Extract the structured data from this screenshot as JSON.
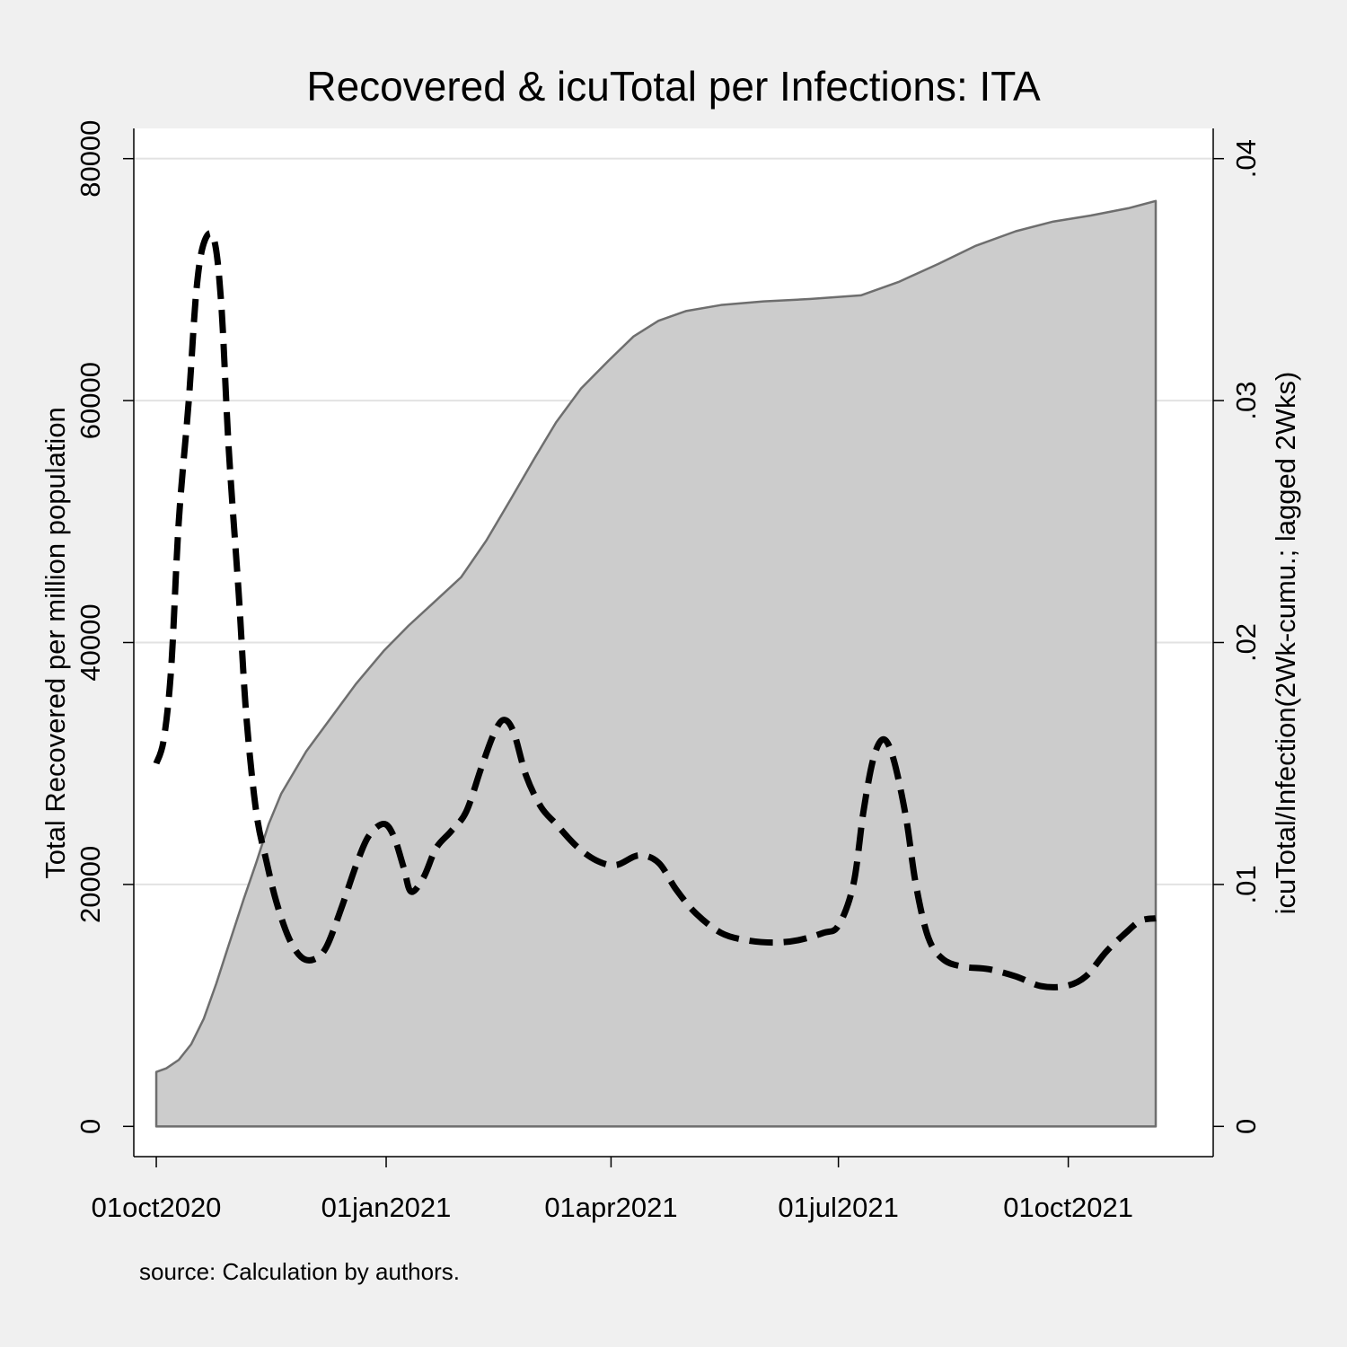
{
  "chart_data": {
    "type": "area",
    "title": "Recovered & icuTotal per Infections: ITA",
    "ylabel_left": "Total Recovered per million population",
    "ylabel_right": "icuTotal/Infection(2Wk-cumu.; lagged 2Wks)",
    "xlabel": "",
    "source_note": "source: Calculation by authors.",
    "x_ticks": [
      {
        "date": "2020-10-01",
        "label": "01oct2020"
      },
      {
        "date": "2021-01-01",
        "label": "01jan2021"
      },
      {
        "date": "2021-04-01",
        "label": "01apr2021"
      },
      {
        "date": "2021-07-01",
        "label": "01jul2021"
      },
      {
        "date": "2021-10-01",
        "label": "01oct2021"
      }
    ],
    "x_range": [
      "2020-09-22",
      "2021-11-28"
    ],
    "y_left": {
      "range": [
        -2500,
        82500
      ],
      "ticks": [
        {
          "value": 0,
          "label": "0"
        },
        {
          "value": 20000,
          "label": "20000"
        },
        {
          "value": 40000,
          "label": "40000"
        },
        {
          "value": 60000,
          "label": "60000"
        },
        {
          "value": 80000,
          "label": "80000"
        }
      ]
    },
    "y_right": {
      "range": [
        -0.00125,
        0.04125
      ],
      "ticks": [
        {
          "value": 0,
          "label": "0"
        },
        {
          "value": 0.01,
          "label": ".01"
        },
        {
          "value": 0.02,
          "label": ".02"
        },
        {
          "value": 0.03,
          "label": ".03"
        },
        {
          "value": 0.04,
          "label": ".04"
        }
      ]
    },
    "grid": true,
    "series": [
      {
        "axis": "left",
        "style": "area",
        "color": "#cccccc",
        "line_color": "#6e6e6e",
        "points": [
          [
            "2020-10-01",
            4500
          ],
          [
            "2020-10-05",
            4800
          ],
          [
            "2020-10-10",
            5500
          ],
          [
            "2020-10-15",
            6800
          ],
          [
            "2020-10-20",
            8900
          ],
          [
            "2020-10-25",
            11800
          ],
          [
            "2020-10-30",
            15000
          ],
          [
            "2020-11-05",
            18800
          ],
          [
            "2020-11-10",
            21800
          ],
          [
            "2020-11-15",
            25000
          ],
          [
            "2020-11-20",
            27500
          ],
          [
            "2020-11-30",
            31000
          ],
          [
            "2020-12-10",
            33800
          ],
          [
            "2020-12-20",
            36600
          ],
          [
            "2020-12-31",
            39300
          ],
          [
            "2021-01-10",
            41400
          ],
          [
            "2021-01-20",
            43300
          ],
          [
            "2021-01-31",
            45400
          ],
          [
            "2021-02-10",
            48400
          ],
          [
            "2021-02-20",
            51900
          ],
          [
            "2021-03-01",
            55100
          ],
          [
            "2021-03-10",
            58200
          ],
          [
            "2021-03-20",
            61000
          ],
          [
            "2021-03-31",
            63300
          ],
          [
            "2021-04-10",
            65300
          ],
          [
            "2021-04-20",
            66600
          ],
          [
            "2021-05-01",
            67400
          ],
          [
            "2021-05-15",
            67900
          ],
          [
            "2021-06-01",
            68200
          ],
          [
            "2021-06-20",
            68400
          ],
          [
            "2021-07-10",
            68700
          ],
          [
            "2021-07-25",
            69800
          ],
          [
            "2021-08-10",
            71300
          ],
          [
            "2021-08-25",
            72800
          ],
          [
            "2021-09-10",
            74000
          ],
          [
            "2021-09-25",
            74800
          ],
          [
            "2021-10-10",
            75300
          ],
          [
            "2021-10-25",
            75900
          ],
          [
            "2021-11-05",
            76500
          ]
        ]
      },
      {
        "axis": "right",
        "style": "dashed-line",
        "color": "#000000",
        "points": [
          [
            "2020-10-01",
            0.015
          ],
          [
            "2020-10-04",
            0.016
          ],
          [
            "2020-10-07",
            0.019
          ],
          [
            "2020-10-10",
            0.025
          ],
          [
            "2020-10-14",
            0.03
          ],
          [
            "2020-10-17",
            0.0345
          ],
          [
            "2020-10-20",
            0.0365
          ],
          [
            "2020-10-24",
            0.0367
          ],
          [
            "2020-10-27",
            0.034
          ],
          [
            "2020-10-30",
            0.028
          ],
          [
            "2020-11-03",
            0.022
          ],
          [
            "2020-11-06",
            0.017
          ],
          [
            "2020-11-10",
            0.013
          ],
          [
            "2020-11-14",
            0.011
          ],
          [
            "2020-11-18",
            0.0093
          ],
          [
            "2020-11-23",
            0.0078
          ],
          [
            "2020-11-28",
            0.007
          ],
          [
            "2020-12-03",
            0.0069
          ],
          [
            "2020-12-08",
            0.0074
          ],
          [
            "2020-12-14",
            0.009
          ],
          [
            "2020-12-20",
            0.0108
          ],
          [
            "2020-12-25",
            0.012
          ],
          [
            "2020-12-31",
            0.0125
          ],
          [
            "2021-01-04",
            0.012
          ],
          [
            "2021-01-08",
            0.0107
          ],
          [
            "2021-01-11",
            0.0097
          ],
          [
            "2021-01-16",
            0.0103
          ],
          [
            "2021-01-21",
            0.0115
          ],
          [
            "2021-01-27",
            0.0122
          ],
          [
            "2021-02-02",
            0.013
          ],
          [
            "2021-02-08",
            0.0148
          ],
          [
            "2021-02-13",
            0.0162
          ],
          [
            "2021-02-17",
            0.0168
          ],
          [
            "2021-02-21",
            0.0163
          ],
          [
            "2021-02-26",
            0.0145
          ],
          [
            "2021-03-04",
            0.0132
          ],
          [
            "2021-03-10",
            0.0125
          ],
          [
            "2021-03-18",
            0.0116
          ],
          [
            "2021-03-26",
            0.011
          ],
          [
            "2021-04-03",
            0.0108
          ],
          [
            "2021-04-12",
            0.0112
          ],
          [
            "2021-04-20",
            0.0109
          ],
          [
            "2021-04-27",
            0.0098
          ],
          [
            "2021-05-05",
            0.0088
          ],
          [
            "2021-05-15",
            0.008
          ],
          [
            "2021-05-25",
            0.0077
          ],
          [
            "2021-06-05",
            0.0076
          ],
          [
            "2021-06-15",
            0.0077
          ],
          [
            "2021-06-25",
            0.008
          ],
          [
            "2021-07-01",
            0.0083
          ],
          [
            "2021-07-07",
            0.01
          ],
          [
            "2021-07-11",
            0.013
          ],
          [
            "2021-07-15",
            0.0152
          ],
          [
            "2021-07-19",
            0.016
          ],
          [
            "2021-07-23",
            0.0152
          ],
          [
            "2021-07-28",
            0.0128
          ],
          [
            "2021-08-01",
            0.01
          ],
          [
            "2021-08-06",
            0.0078
          ],
          [
            "2021-08-12",
            0.0069
          ],
          [
            "2021-08-20",
            0.0066
          ],
          [
            "2021-08-30",
            0.0065
          ],
          [
            "2021-09-10",
            0.0062
          ],
          [
            "2021-09-20",
            0.0058
          ],
          [
            "2021-09-30",
            0.0058
          ],
          [
            "2021-10-08",
            0.0062
          ],
          [
            "2021-10-16",
            0.0072
          ],
          [
            "2021-10-24",
            0.008
          ],
          [
            "2021-10-30",
            0.0085
          ],
          [
            "2021-11-05",
            0.0086
          ]
        ]
      }
    ]
  }
}
